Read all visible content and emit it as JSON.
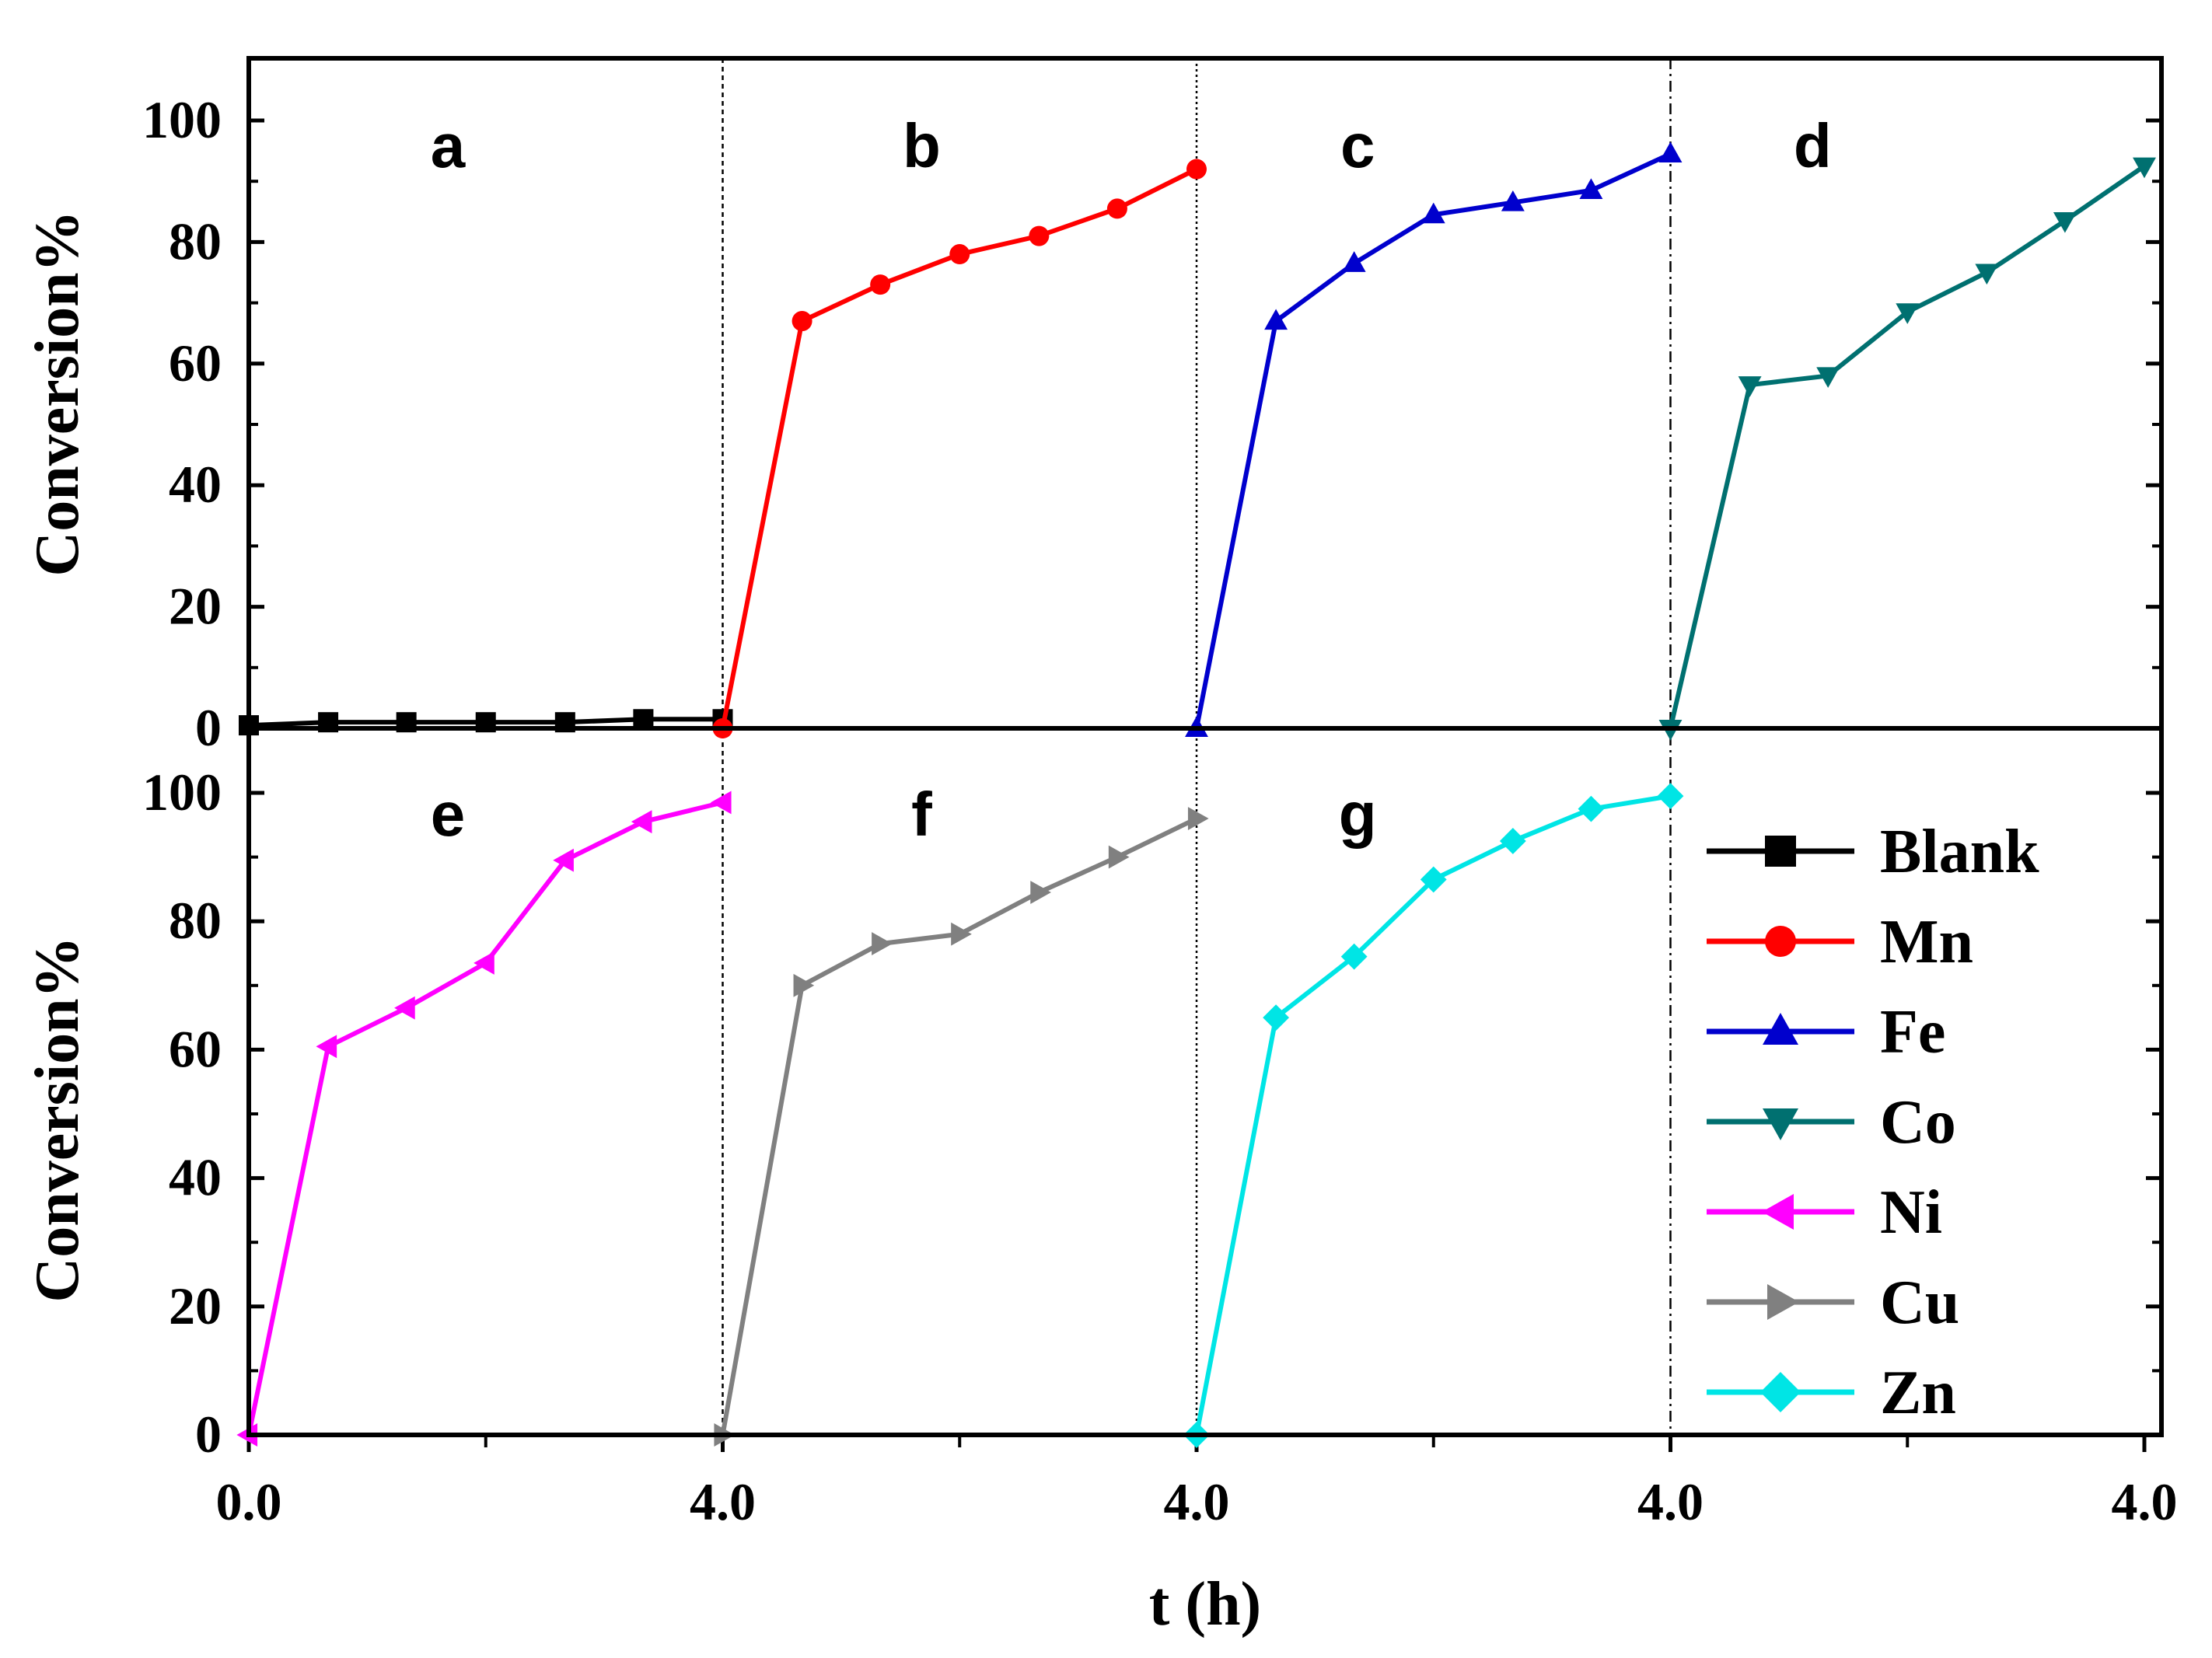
{
  "chart_data": {
    "type": "line",
    "xlabel": "t (h)",
    "ylabel": "Conversion%",
    "ylim": [
      0,
      110
    ],
    "x_ticks": [
      "0.0",
      "4.0",
      "4.0",
      "4.0",
      "4.0"
    ],
    "y_ticks": [
      "0",
      "20",
      "40",
      "60",
      "80",
      "100"
    ],
    "panels": [
      {
        "label": "a",
        "series": "Blank",
        "row": "top",
        "segment": 1
      },
      {
        "label": "b",
        "series": "Mn",
        "row": "top",
        "segment": 2
      },
      {
        "label": "c",
        "series": "Fe",
        "row": "top",
        "segment": 3
      },
      {
        "label": "d",
        "series": "Co",
        "row": "top",
        "segment": 4
      },
      {
        "label": "e",
        "series": "Ni",
        "row": "bottom",
        "segment": 1
      },
      {
        "label": "f",
        "series": "Cu",
        "row": "bottom",
        "segment": 2
      },
      {
        "label": "g",
        "series": "Zn",
        "row": "bottom",
        "segment": 3
      }
    ],
    "x_time_h": [
      0,
      0.67,
      1.33,
      2.0,
      2.67,
      3.33,
      4.0
    ],
    "series": [
      {
        "name": "Blank",
        "color": "#000000",
        "marker": "square",
        "values": [
          0.5,
          1.0,
          1.0,
          1.0,
          1.0,
          1.5,
          1.5
        ]
      },
      {
        "name": "Mn",
        "color": "#ff0000",
        "marker": "circle",
        "values": [
          0,
          67,
          73,
          78,
          81,
          85.5,
          92
        ]
      },
      {
        "name": "Fe",
        "color": "#0000cd",
        "marker": "triangle-up",
        "values": [
          0,
          67,
          76.5,
          84.5,
          86.5,
          88.5,
          94.5
        ]
      },
      {
        "name": "Co",
        "color": "#007070",
        "marker": "triangle-down",
        "values": [
          0,
          56.5,
          58,
          68.5,
          75,
          83.5,
          92.5
        ]
      },
      {
        "name": "Ni",
        "color": "#ff00ff",
        "marker": "triangle-left",
        "values": [
          0,
          60.5,
          66.5,
          73.5,
          89.5,
          95.5,
          98.5
        ]
      },
      {
        "name": "Cu",
        "color": "#808080",
        "marker": "triangle-right",
        "values": [
          0,
          70,
          76.5,
          78,
          84.5,
          90,
          96
        ]
      },
      {
        "name": "Zn",
        "color": "#00e5e5",
        "marker": "diamond",
        "values": [
          0,
          65,
          74.5,
          86.5,
          92.5,
          97.5,
          99.5
        ]
      }
    ]
  }
}
